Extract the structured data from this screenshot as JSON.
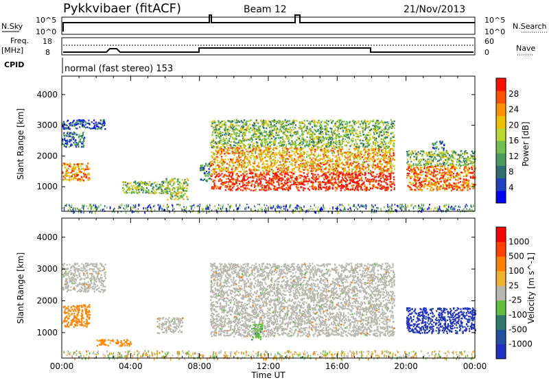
{
  "header": {
    "station": "Pykkvibaer (fitACF)",
    "beam": "Beam 12",
    "date": "21/Nov/2013"
  },
  "nsky_panel": {
    "left_label": "N.Sky",
    "right_label": "N.Search",
    "tick_top": "10^5",
    "tick_bottom": "10^0",
    "right_tick_top": "10^5",
    "right_tick_bottom": "10^0"
  },
  "freq_panel": {
    "left_label_1": "Freq.",
    "left_label_2": "[MHz]",
    "right_label": "Nave",
    "tick_top": "18",
    "tick_bottom": "8",
    "right_tick_top": "60",
    "right_tick_bottom": "0"
  },
  "cpid_panel": {
    "label": "CPID",
    "text": "normal (fast stereo) 153"
  },
  "chart_data": [
    {
      "type": "heatmap",
      "name": "power",
      "ylabel": "Slant Range [km]",
      "xlabel": "",
      "ylim": [
        200,
        4600
      ],
      "yticks": [
        1000,
        2000,
        3000,
        4000
      ],
      "xlim": [
        "00:00",
        "24:00"
      ],
      "colorbar": {
        "label": "Power [dB]",
        "ticks": [
          "28",
          "24",
          "20",
          "16",
          "12",
          "8",
          "4"
        ],
        "colors": [
          "#0000ff",
          "#2040c0",
          "#2e6e6e",
          "#4a9a5a",
          "#70c050",
          "#b8d830",
          "#f0c000",
          "#ff9000",
          "#ff5000",
          "#ff1000"
        ]
      },
      "regions": [
        {
          "t0": 0.0,
          "t1": 1.6,
          "r0": 1200,
          "r1": 1800,
          "level": 0.75
        },
        {
          "t0": 0.0,
          "t1": 1.3,
          "r0": 2300,
          "r1": 2800,
          "level": 0.25
        },
        {
          "t0": 0.0,
          "t1": 2.5,
          "r0": 2900,
          "r1": 3200,
          "level": 0.15
        },
        {
          "t0": 3.5,
          "t1": 6.2,
          "r0": 800,
          "r1": 1200,
          "level": 0.45
        },
        {
          "t0": 6.0,
          "t1": 7.3,
          "r0": 600,
          "r1": 1300,
          "level": 0.5
        },
        {
          "t0": 8.0,
          "t1": 8.6,
          "r0": 1200,
          "r1": 1800,
          "level": 0.3
        },
        {
          "t0": 8.6,
          "t1": 19.3,
          "r0": 900,
          "r1": 1500,
          "level": 0.95
        },
        {
          "t0": 8.6,
          "t1": 19.3,
          "r0": 1500,
          "r1": 2300,
          "level": 0.7
        },
        {
          "t0": 8.6,
          "t1": 19.3,
          "r0": 2300,
          "r1": 3200,
          "level": 0.45
        },
        {
          "t0": 20.0,
          "t1": 24.0,
          "r0": 900,
          "r1": 1700,
          "level": 0.8
        },
        {
          "t0": 20.0,
          "t1": 24.0,
          "r0": 1700,
          "r1": 2200,
          "level": 0.45
        },
        {
          "t0": 21.5,
          "t1": 22.2,
          "r0": 2200,
          "r1": 2500,
          "level": 0.3
        }
      ]
    },
    {
      "type": "heatmap",
      "name": "velocity",
      "ylabel": "Slant Range [km]",
      "xlabel": "Time UT",
      "ylim": [
        200,
        4600
      ],
      "yticks": [
        1000,
        2000,
        3000,
        4000
      ],
      "xticks": [
        "00:00",
        "04:00",
        "08:00",
        "12:00",
        "16:00",
        "20:00",
        "00:00"
      ],
      "colorbar": {
        "label": "Velocity [m s^-1]",
        "ticks": [
          "1000",
          "500",
          "100",
          "25",
          "-25",
          "-100",
          "-500",
          "-1000"
        ],
        "colors": [
          "#2030c0",
          "#2050a0",
          "#2e7a6a",
          "#60c040",
          "#b8b8b0",
          "#f0b030",
          "#ff8000",
          "#ff4000",
          "#ff0000"
        ]
      },
      "regions": [
        {
          "t0": 0.0,
          "t1": 1.6,
          "r0": 1200,
          "r1": 1900,
          "level": "orange"
        },
        {
          "t0": 0.0,
          "t1": 2.5,
          "r0": 2300,
          "r1": 3200,
          "level": "grey"
        },
        {
          "t0": 2.0,
          "t1": 4.0,
          "r0": 600,
          "r1": 800,
          "level": "orange"
        },
        {
          "t0": 5.5,
          "t1": 7.0,
          "r0": 1000,
          "r1": 1500,
          "level": "grey"
        },
        {
          "t0": 8.6,
          "t1": 19.3,
          "r0": 900,
          "r1": 3200,
          "level": "grey"
        },
        {
          "t0": 11.0,
          "t1": 11.6,
          "r0": 800,
          "r1": 1300,
          "level": "green"
        },
        {
          "t0": 20.0,
          "t1": 24.0,
          "r0": 1000,
          "r1": 1800,
          "level": "blue"
        }
      ]
    }
  ],
  "x_axis_label": "Time UT",
  "x_ticks": [
    "00:00",
    "04:00",
    "08:00",
    "12:00",
    "16:00",
    "20:00",
    "00:00"
  ]
}
